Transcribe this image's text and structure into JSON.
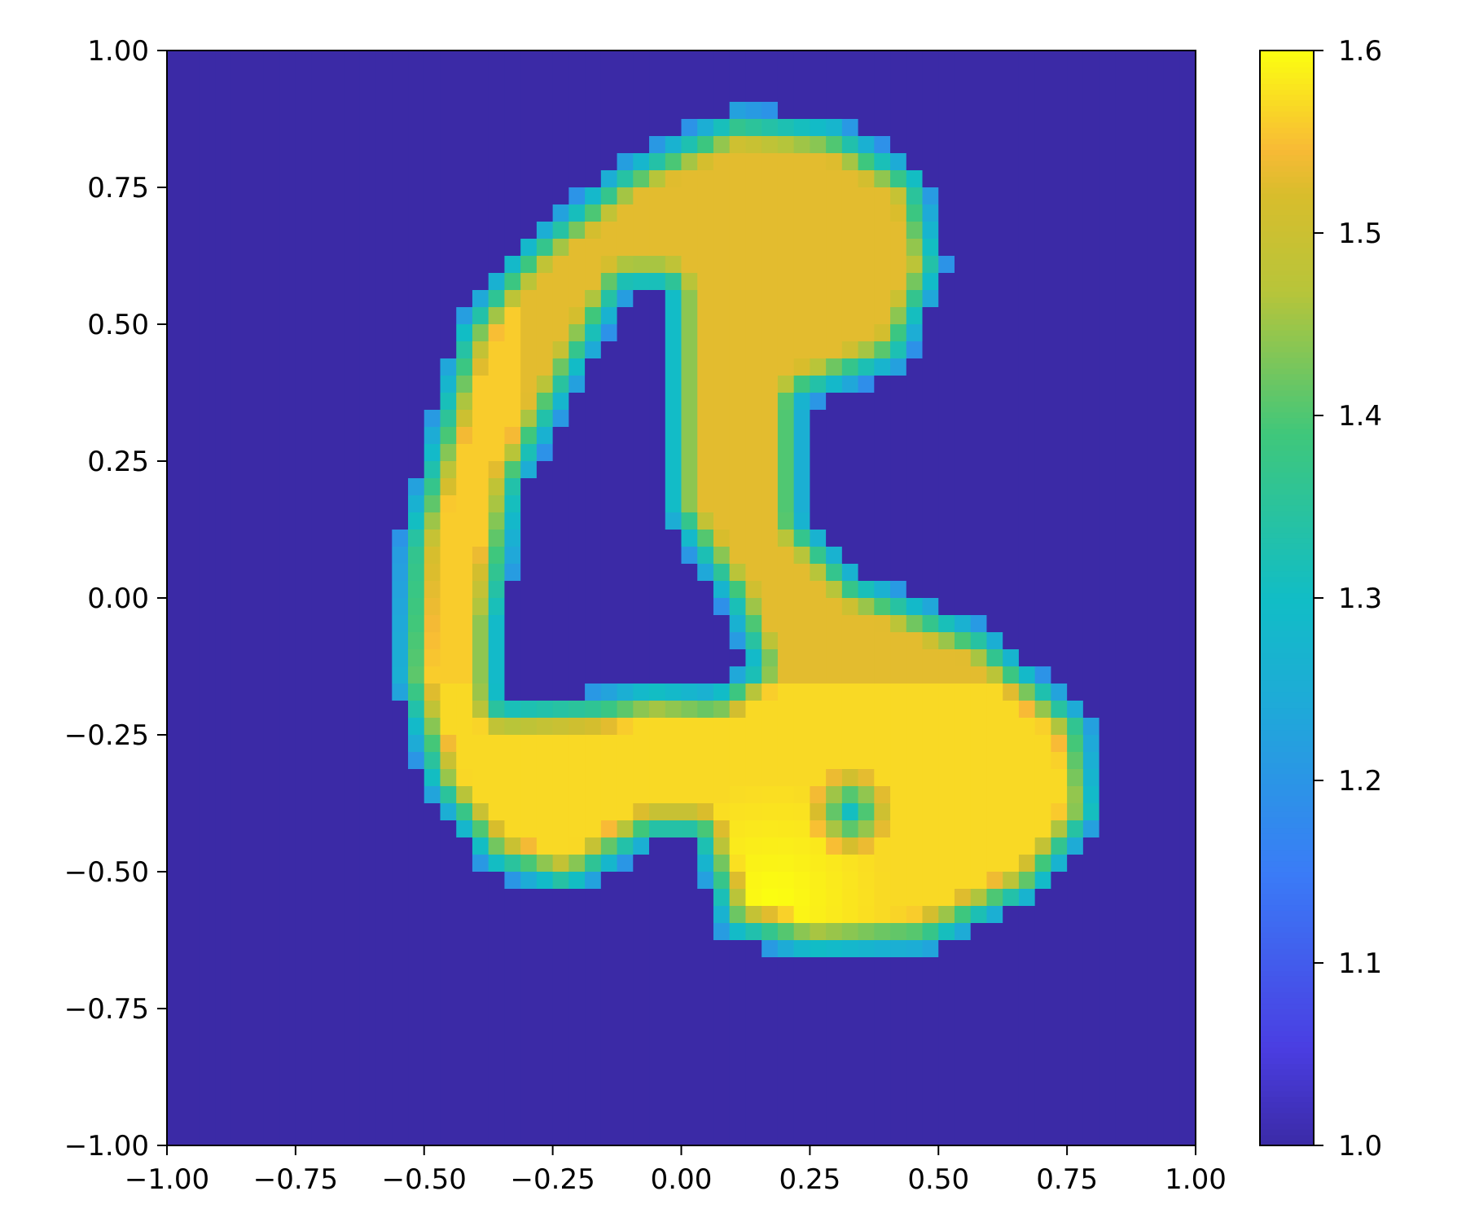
{
  "chart_data": {
    "type": "heatmap",
    "title": "",
    "xlabel": "",
    "ylabel": "",
    "xlim": [
      -1.0,
      1.0
    ],
    "ylim": [
      -1.0,
      1.0
    ],
    "grid": false,
    "colormap": {
      "name": "plasma-like (indigo-blue-teal-green-yellow)",
      "stops": [
        {
          "v": 0.0,
          "color": "#3b2aa6"
        },
        {
          "v": 0.09,
          "color": "#4a3ee2"
        },
        {
          "v": 0.25,
          "color": "#3a7cf7"
        },
        {
          "v": 0.4,
          "color": "#1fa9d8"
        },
        {
          "v": 0.5,
          "color": "#11bdc6"
        },
        {
          "v": 0.65,
          "color": "#3fc77b"
        },
        {
          "v": 0.78,
          "color": "#b7c53a"
        },
        {
          "v": 0.87,
          "color": "#d9bd2c"
        },
        {
          "v": 0.91,
          "color": "#f8ba36"
        },
        {
          "v": 1.0,
          "color": "#fbff10"
        }
      ]
    },
    "background_value": 1.0,
    "value_range": [
      1.0,
      1.6
    ],
    "x_ticks": [
      "−1.00",
      "−0.75",
      "−0.50",
      "−0.25",
      "0.00",
      "0.25",
      "0.50",
      "0.75",
      "1.00"
    ],
    "y_ticks": [
      "1.00",
      "0.75",
      "0.50",
      "0.25",
      "0.00",
      "−0.25",
      "−0.50",
      "−0.75",
      "−1.00"
    ],
    "x_tick_values": [
      -1.0,
      -0.75,
      -0.5,
      -0.25,
      0.0,
      0.25,
      0.5,
      0.75,
      1.0
    ],
    "y_tick_values": [
      1.0,
      0.75,
      0.5,
      0.25,
      0.0,
      -0.25,
      -0.5,
      -0.75,
      -1.0
    ],
    "colorbar": {
      "ticks": [
        "1.0",
        "1.1",
        "1.2",
        "1.3",
        "1.4",
        "1.5",
        "1.6"
      ],
      "tick_values": [
        1.0,
        1.1,
        1.2,
        1.3,
        1.4,
        1.5,
        1.6
      ],
      "range": [
        1.0,
        1.6
      ]
    },
    "shape_region": {
      "outer_outline": [
        [
          -0.44,
          0.5
        ],
        [
          -0.32,
          0.65
        ],
        [
          -0.12,
          0.8
        ],
        [
          0.1,
          0.9
        ],
        [
          0.3,
          0.88
        ],
        [
          0.48,
          0.78
        ],
        [
          0.52,
          0.6
        ],
        [
          0.44,
          0.42
        ],
        [
          0.25,
          0.35
        ],
        [
          0.25,
          0.15
        ],
        [
          0.35,
          0.05
        ],
        [
          0.6,
          -0.05
        ],
        [
          0.8,
          -0.22
        ],
        [
          0.82,
          -0.4
        ],
        [
          0.7,
          -0.55
        ],
        [
          0.48,
          -0.65
        ],
        [
          0.25,
          -0.66
        ],
        [
          0.08,
          -0.62
        ],
        [
          0.02,
          -0.45
        ],
        [
          -0.05,
          -0.45
        ],
        [
          -0.22,
          -0.55
        ],
        [
          -0.38,
          -0.5
        ],
        [
          -0.5,
          -0.35
        ],
        [
          -0.56,
          -0.15
        ],
        [
          -0.55,
          0.1
        ]
      ],
      "inner_hole": [
        [
          -0.1,
          0.55
        ],
        [
          -0.04,
          0.55
        ],
        [
          -0.04,
          0.15
        ],
        [
          0.08,
          -0.02
        ],
        [
          0.12,
          -0.12
        ],
        [
          0.06,
          -0.16
        ],
        [
          -0.06,
          -0.15
        ],
        [
          -0.16,
          -0.17
        ],
        [
          -0.34,
          -0.18
        ],
        [
          -0.34,
          -0.05
        ],
        [
          -0.3,
          0.2
        ],
        [
          -0.2,
          0.38
        ]
      ],
      "small_dip": {
        "center": [
          0.33,
          -0.39
        ],
        "radius": 0.05,
        "value": 1.3
      },
      "fill_values": {
        "left_arm": 1.56,
        "top_lobe": 1.53,
        "center_stem": 1.53,
        "bottom_body": 1.57,
        "bottom_hotspot": 1.6
      }
    }
  }
}
